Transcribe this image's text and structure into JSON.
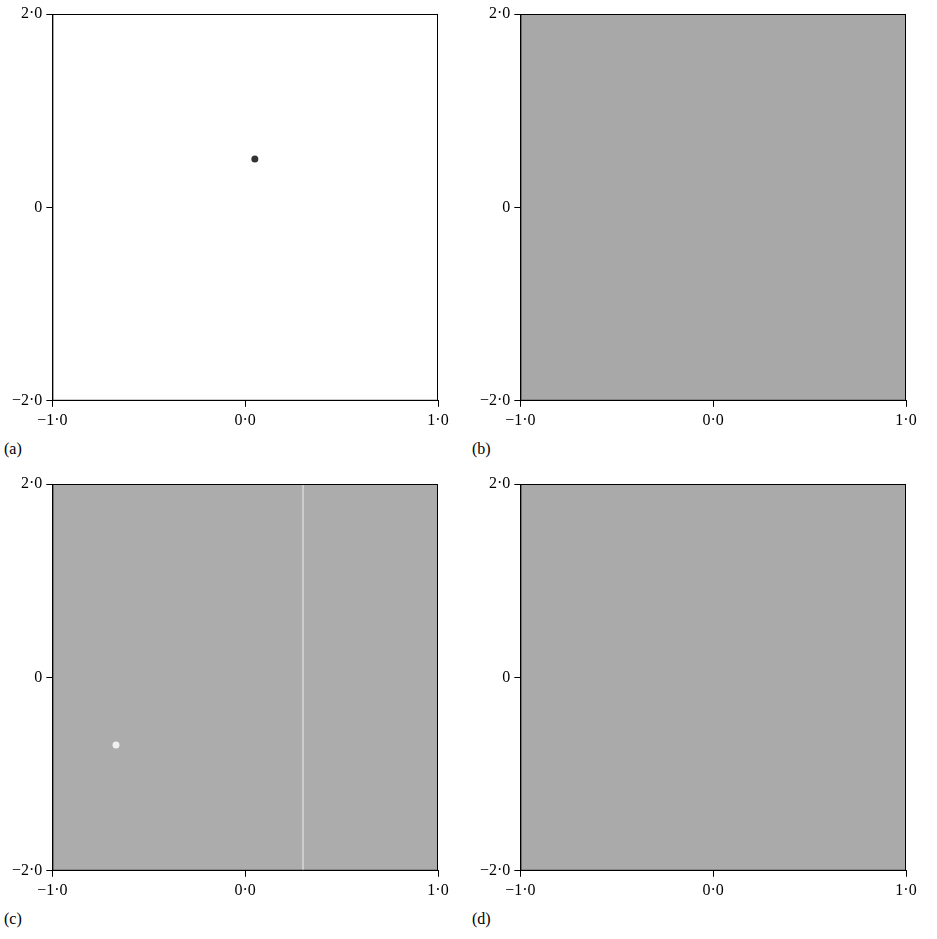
{
  "chart_data": [
    {
      "type": "scatter",
      "panel_label": "(a)",
      "background": "#ffffff",
      "xlim": [
        -1,
        1
      ],
      "ylim": [
        -2,
        2
      ],
      "xticks": [
        {
          "value": -1,
          "label": "−1·0"
        },
        {
          "value": 0,
          "label": "0·0"
        },
        {
          "value": 1,
          "label": "1·0"
        }
      ],
      "yticks": [
        {
          "value": -2,
          "label": "−2·0"
        },
        {
          "value": 0,
          "label": "0"
        },
        {
          "value": 2,
          "label": "2·0"
        }
      ],
      "grid": false,
      "series": [
        {
          "color": "#333333",
          "marker": "circle",
          "x": [
            0.05
          ],
          "values": [
            0.5
          ]
        }
      ]
    },
    {
      "type": "scatter",
      "panel_label": "(b)",
      "background": "#a8a8a8",
      "xlim": [
        -1,
        1
      ],
      "ylim": [
        -2,
        2
      ],
      "xticks": [
        {
          "value": -1,
          "label": "−1·0"
        },
        {
          "value": 0,
          "label": "0·0"
        },
        {
          "value": 1,
          "label": "1·0"
        }
      ],
      "yticks": [
        {
          "value": -2,
          "label": "−2·0"
        },
        {
          "value": 0,
          "label": "0"
        },
        {
          "value": 2,
          "label": "2·0"
        }
      ],
      "grid": false,
      "series": []
    },
    {
      "type": "scatter",
      "panel_label": "(c)",
      "background": "#acacac",
      "xlim": [
        -1,
        1
      ],
      "ylim": [
        -2,
        2
      ],
      "xticks": [
        {
          "value": -1,
          "label": "−1·0"
        },
        {
          "value": 0,
          "label": "0·0"
        },
        {
          "value": 1,
          "label": "1·0"
        }
      ],
      "yticks": [
        {
          "value": -2,
          "label": "−2·0"
        },
        {
          "value": 0,
          "label": "0"
        },
        {
          "value": 2,
          "label": "2·0"
        }
      ],
      "grid": false,
      "series": [
        {
          "color": "#f0f0f0",
          "marker": "circle",
          "x": [
            -0.67
          ],
          "values": [
            -0.7
          ]
        },
        {
          "type": "line",
          "color": "#d8d8d8",
          "line_style": "solid",
          "x": [
            0.3,
            0.3
          ],
          "values": [
            -2,
            2
          ]
        }
      ]
    },
    {
      "type": "scatter",
      "panel_label": "(d)",
      "background": "#aaaaaa",
      "xlim": [
        -1,
        1
      ],
      "ylim": [
        -2,
        2
      ],
      "xticks": [
        {
          "value": -1,
          "label": "−1·0"
        },
        {
          "value": 0,
          "label": "0·0"
        },
        {
          "value": 1,
          "label": "1·0"
        }
      ],
      "yticks": [
        {
          "value": -2,
          "label": "−2·0"
        },
        {
          "value": 0,
          "label": "0"
        },
        {
          "value": 2,
          "label": "2·0"
        }
      ],
      "grid": false,
      "series": []
    }
  ]
}
